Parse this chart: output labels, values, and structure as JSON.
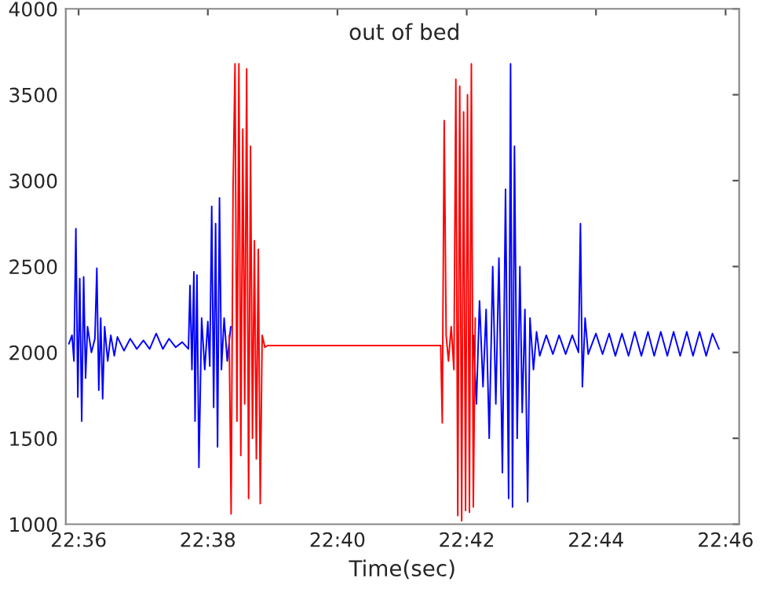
{
  "chart_data": {
    "type": "line",
    "xlabel": "Time(sec)",
    "annotations": [
      "out of bed"
    ],
    "xlim": [
      22.5967,
      22.7702
    ],
    "ylim": [
      1000,
      4000
    ],
    "xticks": [
      {
        "value": 22.6,
        "label": "22:36"
      },
      {
        "value": 22.6333,
        "label": "22:38"
      },
      {
        "value": 22.6667,
        "label": "22:40"
      },
      {
        "value": 22.7,
        "label": "22:42"
      },
      {
        "value": 22.7333,
        "label": "22:44"
      },
      {
        "value": 22.7667,
        "label": "22:46"
      }
    ],
    "yticks": [
      1000,
      1500,
      2000,
      2500,
      3000,
      3500,
      4000
    ],
    "grid": false,
    "legend": false,
    "series": [
      {
        "color": "#0000ff",
        "x": [
          22.5975,
          22.5983,
          22.5988,
          22.5993,
          22.5998,
          22.6003,
          22.6008,
          22.6013,
          22.6018,
          22.6023,
          22.6033,
          22.6042,
          22.6047,
          22.6052,
          22.6057,
          22.6062,
          22.6067,
          22.6075,
          22.6083,
          22.6092,
          22.61,
          22.6117,
          22.6133,
          22.615,
          22.6167,
          22.6183,
          22.62,
          22.6217,
          22.6233,
          22.625,
          22.6267,
          22.6283,
          22.6287,
          22.6292,
          22.6297,
          22.63,
          22.6305,
          22.631,
          22.6317,
          22.6325,
          22.6333,
          22.6338,
          22.6343,
          22.6348,
          22.6353,
          22.6358,
          22.6363,
          22.6368,
          22.6375,
          22.6383,
          22.6392,
          22.67,
          22.7017,
          22.7025,
          22.7033,
          22.7042,
          22.705,
          22.7058,
          22.7067,
          22.7075,
          22.7083,
          22.7092,
          22.71,
          22.7108,
          22.7113,
          22.7118,
          22.7123,
          22.713,
          22.7137,
          22.7143,
          22.715,
          22.7157,
          22.7163,
          22.7172,
          22.718,
          22.7188,
          22.7205,
          22.7222,
          22.7238,
          22.7255,
          22.7272,
          22.7288,
          22.7293,
          22.7298,
          22.7305,
          22.7313,
          22.7333,
          22.735,
          22.7367,
          22.7383,
          22.74,
          22.7417,
          22.7433,
          22.745,
          22.7467,
          22.7483,
          22.75,
          22.7517,
          22.7533,
          22.755,
          22.7567,
          22.7583,
          22.76,
          22.7617,
          22.7633,
          22.765
        ],
        "values": [
          2050,
          2100,
          1950,
          2720,
          1740,
          2430,
          1600,
          2440,
          1850,
          2150,
          2000,
          2080,
          2490,
          1780,
          2200,
          1730,
          2150,
          1950,
          2100,
          1980,
          2090,
          2010,
          2080,
          2020,
          2070,
          2020,
          2110,
          2020,
          2080,
          2030,
          2060,
          2020,
          2390,
          1900,
          2470,
          1600,
          2450,
          1330,
          2200,
          1900,
          2180,
          1920,
          2850,
          1680,
          2750,
          1450,
          2900,
          1900,
          2200,
          1950,
          2150,
          null,
          2100,
          1700,
          2300,
          1800,
          2250,
          1500,
          2500,
          1700,
          2550,
          1300,
          2950,
          1150,
          3680,
          1100,
          3200,
          1500,
          2500,
          1650,
          2250,
          1130,
          2200,
          1900,
          2120,
          1980,
          2100,
          1990,
          2100,
          1990,
          2100,
          2000,
          2750,
          1800,
          2200,
          1990,
          2110,
          1990,
          2110,
          1980,
          2110,
          1980,
          2120,
          1980,
          2120,
          1980,
          2120,
          1980,
          2120,
          1980,
          2120,
          1980,
          2120,
          1980,
          2110,
          2020
        ]
      },
      {
        "color": "#ff0000",
        "x": [
          22.6388,
          22.6393,
          22.6398,
          22.6403,
          22.6408,
          22.6413,
          22.6418,
          22.6423,
          22.6428,
          22.6433,
          22.6438,
          22.6443,
          22.6448,
          22.6453,
          22.6458,
          22.6463,
          22.6468,
          22.6473,
          22.648,
          22.6487,
          22.65,
          22.6933,
          22.6937,
          22.6942,
          22.6947,
          22.6953,
          22.696,
          22.6967,
          22.6972,
          22.6977,
          22.6982,
          22.6987,
          22.6992,
          22.6997,
          22.7002,
          22.7007,
          22.7012,
          22.7017,
          22.7022
        ],
        "values": [
          2100,
          1060,
          2950,
          3680,
          1600,
          3680,
          1400,
          3300,
          1700,
          3650,
          1150,
          3200,
          1500,
          2650,
          1380,
          2600,
          1120,
          2100,
          2030,
          2040,
          2040,
          2040,
          1590,
          3350,
          2100,
          1950,
          2150,
          1900,
          3590,
          1050,
          3550,
          1020,
          3400,
          1080,
          3500,
          1070,
          3680,
          1100,
          2200
        ]
      }
    ]
  }
}
